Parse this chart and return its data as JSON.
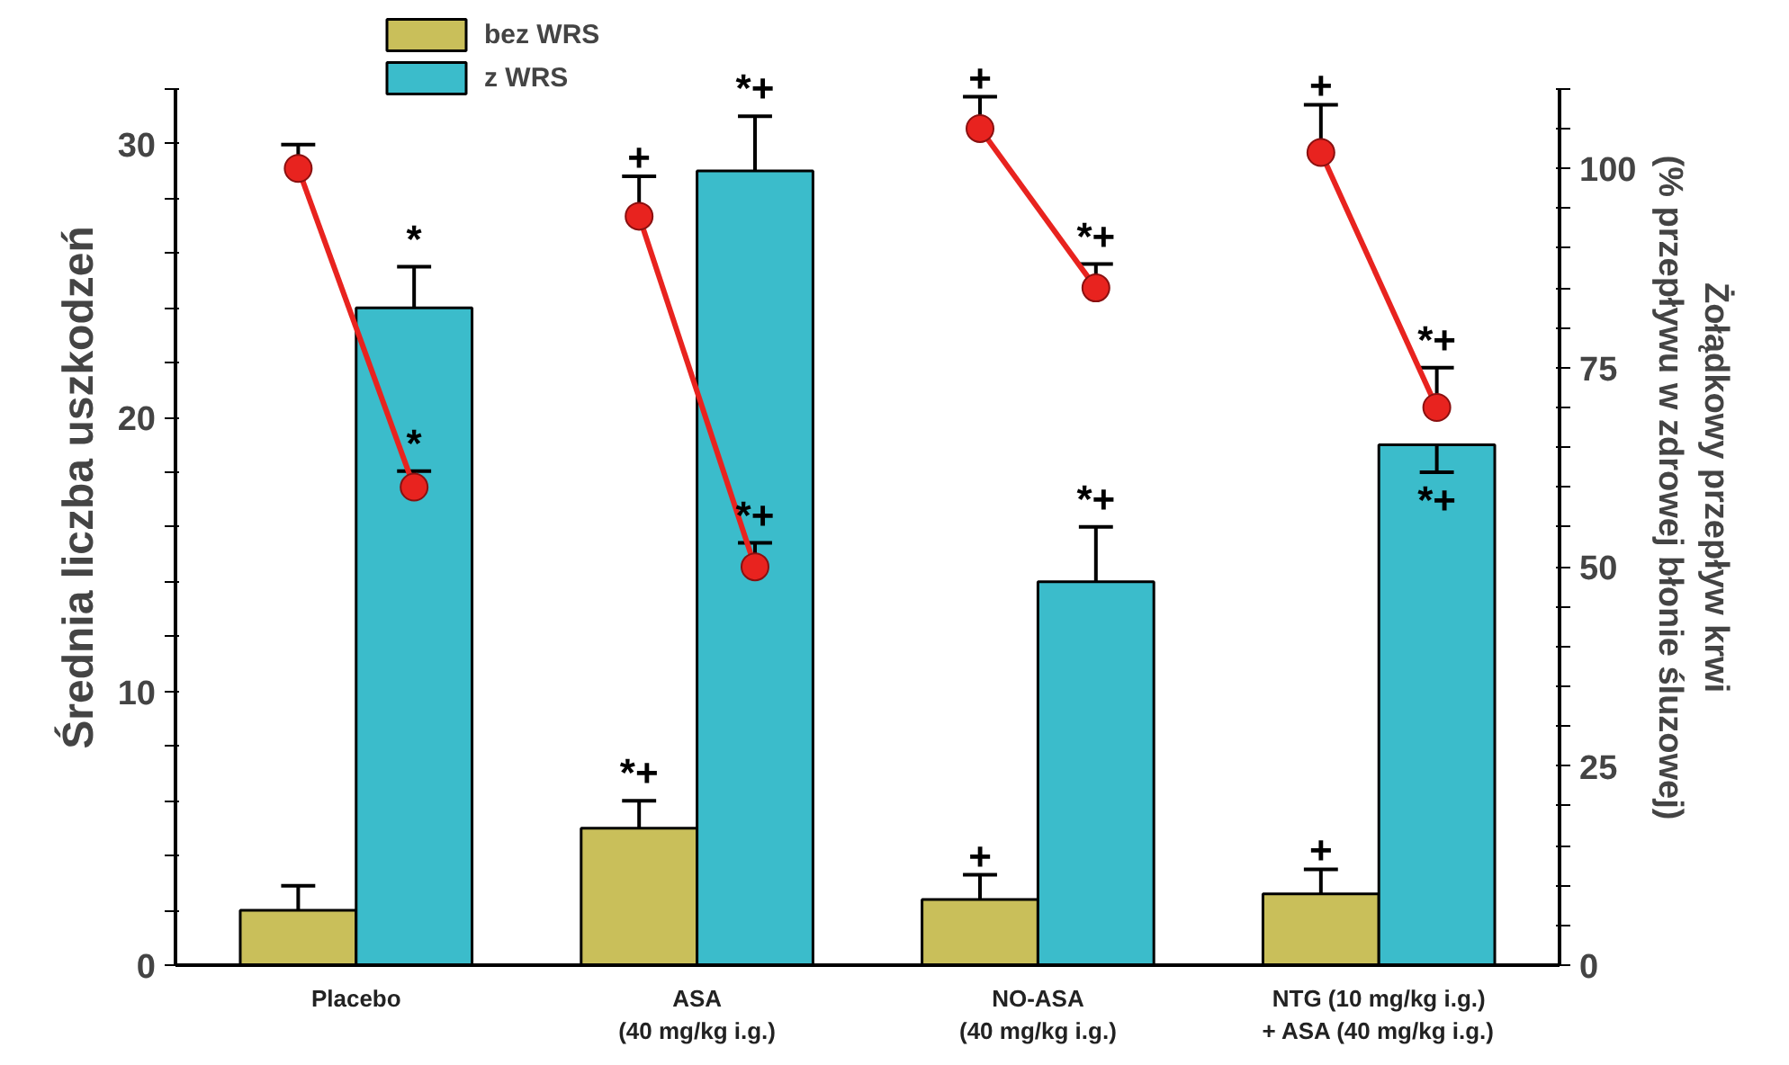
{
  "chart_data": {
    "type": "bar",
    "categories": [
      "Placebo",
      "ASA\n(40 mg/kg i.g.)",
      "NO-ASA\n(40 mg/kg i.g.)",
      "NTG (10 mg/kg i.g.)\n+ ASA (40 mg/kg i.g.)"
    ],
    "ylabel": "Średnia liczba uszkodzeń",
    "y2label": "Żołądkowy przepływ krwi\n(% przepływu w zdrowej błonie śluzowej)",
    "ylim": [
      0,
      32
    ],
    "yticks": [
      0,
      {
        "value": 2,
        "label": null
      },
      {
        "value": 4,
        "label": null
      },
      {
        "value": 6,
        "label": null
      },
      {
        "value": 8,
        "label": null
      },
      10,
      {
        "value": 12,
        "label": null
      },
      {
        "value": 14,
        "label": null
      },
      {
        "value": 16,
        "label": null
      },
      {
        "value": 18,
        "label": null
      },
      20,
      {
        "value": 22,
        "label": null
      },
      {
        "value": 24,
        "label": null
      },
      {
        "value": 26,
        "label": null
      },
      {
        "value": 28,
        "label": null
      },
      30,
      {
        "value": 32,
        "label": null
      }
    ],
    "y2lim": [
      0,
      110
    ],
    "y2ticks": [
      0,
      {
        "value": 5,
        "label": null
      },
      {
        "value": 10,
        "label": null
      },
      {
        "value": 15,
        "label": null
      },
      {
        "value": 20,
        "label": null
      },
      25,
      {
        "value": 30,
        "label": null
      },
      {
        "value": 35,
        "label": null
      },
      {
        "value": 40,
        "label": null
      },
      {
        "value": 45,
        "label": null
      },
      50,
      {
        "value": 55,
        "label": null
      },
      {
        "value": 60,
        "label": null
      },
      {
        "value": 65,
        "label": null
      },
      {
        "value": 70,
        "label": null
      },
      75,
      {
        "value": 80,
        "label": null
      },
      {
        "value": 85,
        "label": null
      },
      {
        "value": 90,
        "label": null
      },
      {
        "value": 95,
        "label": null
      },
      100,
      {
        "value": 105,
        "label": null
      },
      {
        "value": 110,
        "label": null
      }
    ],
    "grid": false,
    "legend": "top",
    "series": [
      {
        "name": "bez WRS",
        "color": "#c9bf5a",
        "values": [
          2.0,
          5.0,
          2.4,
          2.6
        ],
        "errors": [
          [
            2.0,
            2.9
          ],
          [
            5.0,
            6.0
          ],
          [
            2.4,
            3.3
          ],
          [
            2.6,
            3.5
          ]
        ],
        "value_labels": [
          null,
          "*+",
          "+",
          "+"
        ]
      },
      {
        "name": "z WRS",
        "color": "#3bbccb",
        "values": [
          24,
          29,
          14,
          19
        ],
        "errors": [
          [
            24,
            25.5
          ],
          [
            29,
            31
          ],
          [
            14,
            16
          ],
          [
            18,
            19
          ]
        ],
        "value_labels": [
          "*",
          "*+",
          "*+",
          "*+"
        ]
      },
      {
        "type": "scatter",
        "axis": "y2",
        "color": "#e8231f",
        "marker": "circle",
        "values": [
          100,
          94,
          105,
          102
        ],
        "errors": [
          [
            100,
            103
          ],
          [
            94,
            99
          ],
          [
            105,
            109
          ],
          [
            102,
            108
          ]
        ],
        "value_labels": [
          null,
          "+",
          "+",
          "+"
        ]
      },
      {
        "type": "scatter",
        "axis": "y2",
        "color": "#e8231f",
        "marker": "circle",
        "values": [
          60,
          50,
          85,
          70
        ],
        "errors": [
          [
            60,
            62
          ],
          [
            50,
            53
          ],
          [
            85,
            88
          ],
          [
            70,
            75
          ]
        ],
        "value_labels": [
          "*",
          "*+",
          "*+",
          "*+"
        ]
      }
    ]
  }
}
